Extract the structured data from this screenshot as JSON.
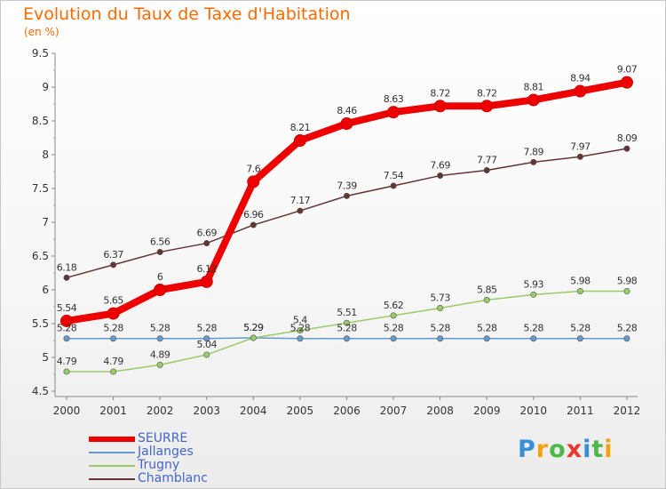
{
  "title": "Evolution du Taux de Taxe d'Habitation",
  "unit_label": "(en %)",
  "logo_text": "Proxiti",
  "chart_data": {
    "type": "line",
    "title": "Evolution du Taux de Taxe d'Habitation",
    "ylabel": "(en %)",
    "x": [
      "2000",
      "2001",
      "2002",
      "2003",
      "2004",
      "2005",
      "2006",
      "2007",
      "2008",
      "2009",
      "2010",
      "2011",
      "2012"
    ],
    "ylim": [
      4.5,
      9.5
    ],
    "yticks": [
      "4.5",
      "5",
      "5.5",
      "6",
      "6.5",
      "7",
      "7.5",
      "8",
      "8.5",
      "9",
      "9.5"
    ],
    "grid": false,
    "legend_position": "bottom-left",
    "series": [
      {
        "name": "SEURRE",
        "color": "#ee0000",
        "values": [
          5.54,
          5.65,
          6,
          6.12,
          7.6,
          8.21,
          8.46,
          8.63,
          8.72,
          8.72,
          8.81,
          8.94,
          9.07
        ],
        "labels": [
          "5.54",
          "5.65",
          "6",
          "6.12",
          "7.6",
          "8.21",
          "8.46",
          "8.63",
          "8.72",
          "8.72",
          "8.81",
          "8.94",
          "9.07"
        ]
      },
      {
        "name": "Jallanges",
        "color": "#6699cc",
        "values": [
          5.28,
          5.28,
          5.28,
          5.28,
          5.29,
          5.28,
          5.28,
          5.28,
          5.28,
          5.28,
          5.28,
          5.28,
          5.28
        ],
        "labels": [
          "5.28",
          "5.28",
          "5.28",
          "5.28",
          "5.29",
          "5.28",
          "5.28",
          "5.28",
          "5.28",
          "5.28",
          "5.28",
          "5.28",
          "5.28"
        ]
      },
      {
        "name": "Trugny",
        "color": "#99cc66",
        "values": [
          4.79,
          4.79,
          4.89,
          5.04,
          5.29,
          5.4,
          5.51,
          5.62,
          5.73,
          5.85,
          5.93,
          5.98,
          5.98
        ],
        "labels": [
          "4.79",
          "4.79",
          "4.89",
          "5.04",
          "5.29",
          "5.4",
          "5.51",
          "5.62",
          "5.73",
          "5.85",
          "5.93",
          "5.98",
          "5.98"
        ]
      },
      {
        "name": "Chamblanc",
        "color": "#663333",
        "values": [
          6.18,
          6.37,
          6.56,
          6.69,
          6.96,
          7.17,
          7.39,
          7.54,
          7.69,
          7.77,
          7.89,
          7.97,
          8.09
        ],
        "labels": [
          "6.18",
          "6.37",
          "6.56",
          "6.69",
          "6.96",
          "7.17",
          "7.39",
          "7.54",
          "7.69",
          "7.77",
          "7.89",
          "7.97",
          "8.09"
        ]
      }
    ]
  }
}
